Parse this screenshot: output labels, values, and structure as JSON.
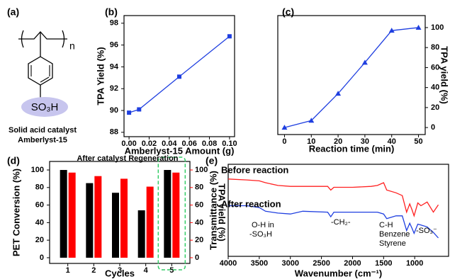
{
  "structure": {
    "panel_label": "(a)",
    "repeat": "n",
    "group": "SO₃H",
    "caption": [
      "Solid acid catalyst",
      "Amberlyst-15"
    ]
  },
  "chart_data": [
    {
      "type": "line",
      "panel_label": "(b)",
      "xlabel": "Amberlyst-15 Amount (g)",
      "ylabel": "TPA Yield (%)",
      "x": [
        0.0,
        0.01,
        0.05,
        0.1
      ],
      "series": [
        {
          "name": "TPA Yield",
          "color": "#1f3fe0",
          "marker": "square",
          "values": [
            89.8,
            90.1,
            93.1,
            96.8
          ]
        }
      ],
      "xlim": [
        -0.005,
        0.105
      ],
      "ylim": [
        87.6,
        98.7
      ],
      "xticks": [
        {
          "value": 0,
          "label": "0.00"
        },
        {
          "value": 0.02,
          "label": "0.02"
        },
        {
          "value": 0.04,
          "label": "0.04"
        },
        {
          "value": 0.06,
          "label": "0.06"
        },
        {
          "value": 0.08,
          "label": "0.08"
        },
        {
          "value": 0.1,
          "label": "0.10"
        }
      ],
      "yticks": [
        88,
        90,
        92,
        94,
        96,
        98
      ],
      "y_axis_side": "left"
    },
    {
      "type": "line",
      "panel_label": "(c)",
      "xlabel": "Reaction time (min)",
      "ylabel": "TPA yield (%)",
      "x": [
        0,
        10,
        20,
        30,
        40,
        50
      ],
      "series": [
        {
          "name": "TPA yield",
          "color": "#1f3fe0",
          "marker": "triangle",
          "values": [
            0,
            7,
            34,
            65,
            97,
            100
          ]
        }
      ],
      "xlim": [
        -2.5,
        52.5
      ],
      "ylim": [
        -7,
        112
      ],
      "xticks": [
        0,
        10,
        20,
        30,
        40,
        50
      ],
      "yticks": [
        0,
        20,
        40,
        60,
        80,
        100
      ],
      "y_axis_side": "right"
    },
    {
      "type": "bar",
      "panel_label": "(d)",
      "xlabel": "Cycles",
      "ylabel": "PET Conversion (%)",
      "y2label": "TPA yield (%)",
      "categories": [
        "1",
        "2",
        "3",
        "4",
        "5"
      ],
      "series": [
        {
          "name": "PET Conversion",
          "color": "#000000",
          "values": [
            100,
            85,
            74,
            54,
            100
          ]
        },
        {
          "name": "TPA yield",
          "color": "#ff0000",
          "axis": "y2",
          "values": [
            97,
            93,
            90,
            81,
            97
          ]
        }
      ],
      "ylim": [
        -6.5,
        109.7
      ],
      "yticks": [
        0,
        20,
        40,
        60,
        80,
        100
      ],
      "y2lim": [
        -6.5,
        109.7
      ],
      "y2ticks": [
        0,
        20,
        40,
        60,
        80,
        100
      ],
      "annotation": "After catalyst Regeneration",
      "highlight_category": "5",
      "highlight_color": "#33cc66"
    },
    {
      "type": "spectrum",
      "panel_label": "(e)",
      "xlabel": "Wavenumber (cm⁻¹)",
      "ylabel": "Transmittance (%)",
      "x": [
        4000,
        3700,
        3500,
        3400,
        3200,
        3000,
        2800,
        2400,
        2350,
        2300,
        2000,
        1700,
        1600,
        1500,
        1450,
        1300,
        1200,
        1130,
        1080,
        1040,
        1010,
        950,
        900,
        800,
        700,
        620
      ],
      "series": [
        {
          "name": "Before reaction",
          "color": "#ff2020",
          "values": [
            84,
            83,
            82,
            80,
            77,
            76,
            76,
            76,
            72,
            75,
            75,
            76,
            77,
            80,
            72,
            69,
            66,
            48,
            57,
            50,
            44,
            58,
            55,
            59,
            48,
            56
          ]
        },
        {
          "name": "After reaction",
          "color": "#1f3fe0",
          "values": [
            55,
            55,
            53,
            49,
            47,
            46,
            49,
            48,
            43,
            48,
            48,
            48,
            48,
            46,
            41,
            44,
            44,
            28,
            36,
            30,
            25,
            35,
            34,
            32,
            26,
            20
          ]
        }
      ],
      "xlim": [
        4000,
        455
      ],
      "ylim": [
        0,
        100
      ],
      "xticks": [
        4000,
        3500,
        3000,
        2500,
        2000,
        1500,
        1000
      ],
      "annotations": [
        {
          "text": "O-H in",
          "color": "#1f3fe0"
        },
        {
          "text": "-SO₃H",
          "color": "#1f3fe0"
        },
        {
          "text": "-CH₂-",
          "color": "#000000"
        },
        {
          "text": "C-H",
          "color": "#000000"
        },
        {
          "text": "Benzene",
          "color": "#000000"
        },
        {
          "text": "Styrene",
          "color": "#000000"
        },
        {
          "text": "-SO₃⁻",
          "color": "#000000"
        }
      ]
    }
  ]
}
